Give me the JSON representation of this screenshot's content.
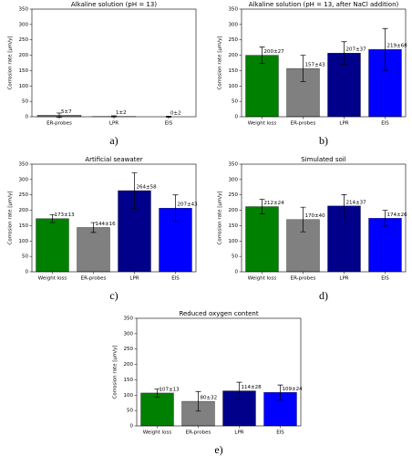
{
  "chart_data": [
    {
      "type": "bar",
      "title": "Alkaline solution (pH = 13)",
      "panel_label": "a)",
      "y_label": "Corrosion rate [µm/y]",
      "categories": [
        "ER-probes",
        "LPR",
        "EIS"
      ],
      "values": [
        5,
        1,
        0
      ],
      "errors": [
        7,
        2,
        2
      ],
      "value_labels": [
        "5±7",
        "1±2",
        "0±2"
      ],
      "colors": [
        "#808080",
        "#00008b",
        "#0000ff"
      ],
      "ylim": [
        0,
        350
      ],
      "yticks": [
        0,
        50,
        100,
        150,
        200,
        250,
        300,
        350
      ]
    },
    {
      "type": "bar",
      "title": "Alkaline solution (pH = 13, after NaCl addition)",
      "panel_label": "b)",
      "y_label": "Corrosion rate [µm/y]",
      "categories": [
        "Weight loss",
        "ER-probes",
        "LPR",
        "EIS"
      ],
      "values": [
        200,
        157,
        207,
        219
      ],
      "errors": [
        27,
        43,
        37,
        68
      ],
      "value_labels": [
        "200±27",
        "157±43",
        "207±37",
        "219±68"
      ],
      "colors": [
        "#008000",
        "#808080",
        "#00008b",
        "#0000ff"
      ],
      "ylim": [
        0,
        350
      ],
      "yticks": [
        0,
        50,
        100,
        150,
        200,
        250,
        300,
        350
      ]
    },
    {
      "type": "bar",
      "title": "Artificial seawater",
      "panel_label": "c)",
      "y_label": "Corrosion rate [µm/y]",
      "categories": [
        "Weight loss",
        "ER-probes",
        "LPR",
        "EIS"
      ],
      "values": [
        173,
        144,
        264,
        207
      ],
      "errors": [
        13,
        16,
        58,
        43
      ],
      "value_labels": [
        "173±13",
        "144±16",
        "264±58",
        "207±43"
      ],
      "colors": [
        "#008000",
        "#808080",
        "#00008b",
        "#0000ff"
      ],
      "ylim": [
        0,
        350
      ],
      "yticks": [
        0,
        50,
        100,
        150,
        200,
        250,
        300,
        350
      ]
    },
    {
      "type": "bar",
      "title": "Simulated soil",
      "panel_label": "d)",
      "y_label": "Corrosion rate [µm/y]",
      "categories": [
        "Weight loss",
        "ER-probes",
        "LPR",
        "EIS"
      ],
      "values": [
        212,
        170,
        214,
        174
      ],
      "errors": [
        24,
        40,
        37,
        26
      ],
      "value_labels": [
        "212±24",
        "170±40",
        "214±37",
        "174±26"
      ],
      "colors": [
        "#008000",
        "#808080",
        "#00008b",
        "#0000ff"
      ],
      "ylim": [
        0,
        350
      ],
      "yticks": [
        0,
        50,
        100,
        150,
        200,
        250,
        300,
        350
      ]
    },
    {
      "type": "bar",
      "title": "Reduced oxygen content",
      "panel_label": "e)",
      "y_label": "Corrosion rate [µm/y]",
      "categories": [
        "Weight loss",
        "ER-probes",
        "LPR",
        "EIS"
      ],
      "values": [
        107,
        80,
        114,
        109
      ],
      "errors": [
        13,
        32,
        28,
        24
      ],
      "value_labels": [
        "107±13",
        "80±32",
        "114±28",
        "109±24"
      ],
      "colors": [
        "#008000",
        "#808080",
        "#00008b",
        "#0000ff"
      ],
      "ylim": [
        0,
        350
      ],
      "yticks": [
        0,
        50,
        100,
        150,
        200,
        250,
        300,
        350
      ]
    }
  ]
}
